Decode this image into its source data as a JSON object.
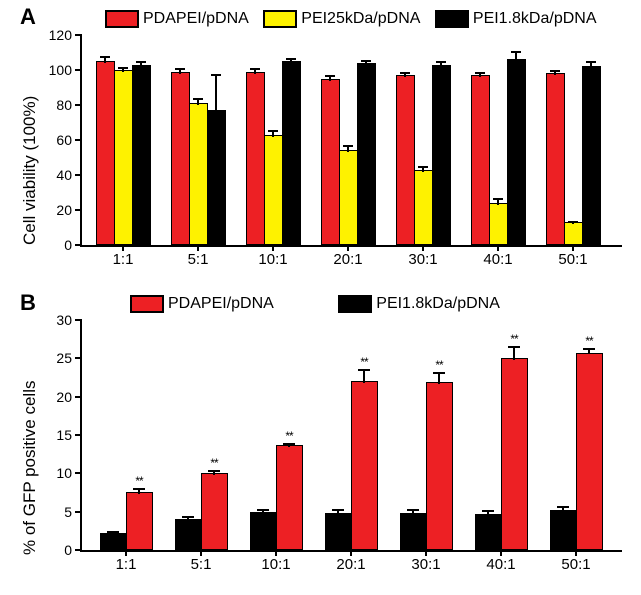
{
  "panelA": {
    "letter": "A",
    "type": "bar",
    "ylabel": "Cell viability (100%)",
    "categories": [
      "1:1",
      "5:1",
      "10:1",
      "20:1",
      "30:1",
      "40:1",
      "50:1"
    ],
    "ylim": [
      0,
      120
    ],
    "yticks": [
      0,
      20,
      40,
      60,
      80,
      100,
      120
    ],
    "label_fontsize": 17,
    "tick_fontsize": 14,
    "series": [
      {
        "name": "PDAPEI/pDNA",
        "color": "#ed2024",
        "values": [
          104,
          98,
          98,
          94,
          96,
          96,
          97
        ],
        "err": [
          4,
          3,
          3,
          3,
          3,
          3,
          3
        ]
      },
      {
        "name": "PEI25kDa/pDNA",
        "color": "#fef200",
        "values": [
          99,
          80,
          62,
          53,
          42,
          23,
          12
        ],
        "err": [
          3,
          4,
          4,
          4,
          3,
          4,
          2
        ]
      },
      {
        "name": "PEI1.8kDa/pDNA",
        "color": "#000000",
        "values": [
          102,
          76,
          104,
          103,
          102,
          105,
          101
        ],
        "err": [
          3,
          22,
          3,
          3,
          3,
          6,
          4
        ]
      }
    ],
    "plot_bg": "#ffffff",
    "axis_color": "#000000"
  },
  "panelB": {
    "letter": "B",
    "type": "bar",
    "ylabel": "% of GFP positive cells",
    "categories": [
      "1:1",
      "5:1",
      "10:1",
      "20:1",
      "30:1",
      "40:1",
      "50:1"
    ],
    "ylim": [
      0,
      30
    ],
    "yticks": [
      0,
      5,
      10,
      15,
      20,
      25,
      30
    ],
    "label_fontsize": 17,
    "tick_fontsize": 14,
    "series": [
      {
        "name": "PEI1.8kDa/pDNA",
        "color": "#000000",
        "values": [
          2.0,
          3.8,
          4.7,
          4.6,
          4.6,
          4.5,
          5.0
        ],
        "err": [
          0.5,
          0.6,
          0.7,
          0.7,
          0.7,
          0.7,
          0.7
        ],
        "sig": [
          "",
          "",
          "",
          "",
          "",
          "",
          ""
        ]
      },
      {
        "name": "PDAPEI/pDNA",
        "color": "#ed2024",
        "values": [
          7.3,
          9.8,
          13.4,
          21.8,
          21.6,
          24.8,
          25.5
        ],
        "err": [
          0.8,
          0.6,
          0.6,
          1.8,
          1.6,
          1.8,
          0.8
        ],
        "sig": [
          "**",
          "**",
          "**",
          "**",
          "**",
          "**",
          "**"
        ]
      }
    ],
    "plot_bg": "#ffffff",
    "axis_color": "#000000"
  }
}
